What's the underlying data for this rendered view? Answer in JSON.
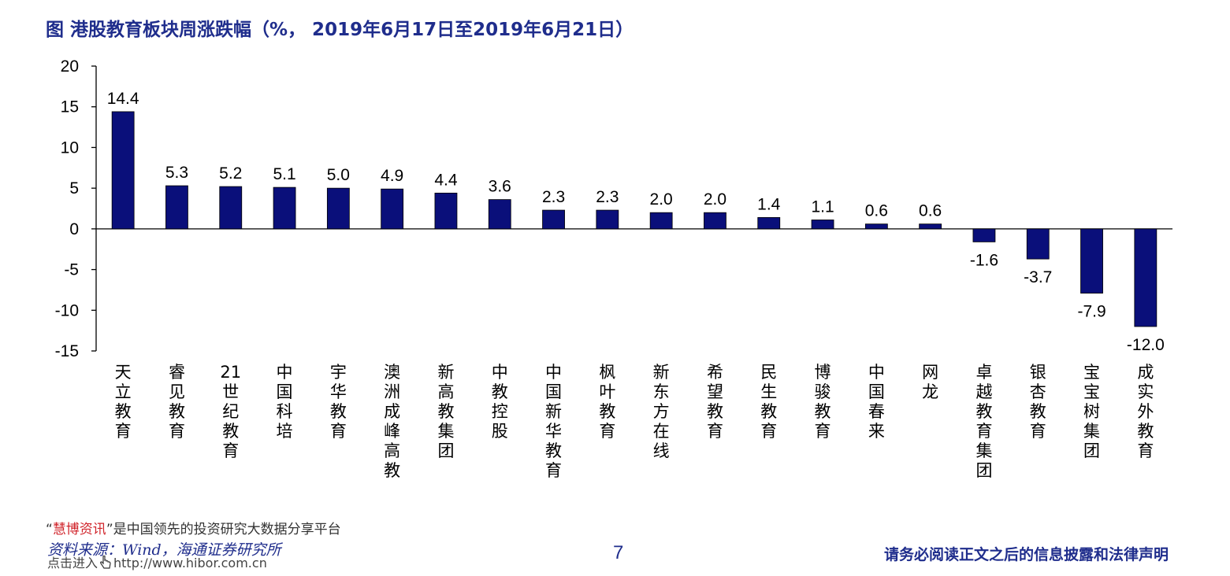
{
  "header": {
    "title": "图  港股教育板块周涨跌幅（%， 2019年6月17日至2019年6月21日）"
  },
  "chart_data": {
    "type": "bar",
    "title": "图  港股教育板块周涨跌幅（%， 2019年6月17日至2019年6月21日）",
    "categories": [
      "天立教育",
      "睿见教育",
      "21世纪教育",
      "中国科培",
      "宇华教育",
      "澳洲成峰高教",
      "新高教集团",
      "中教控股",
      "中国新华教育",
      "枫叶教育",
      "新东方在线",
      "希望教育",
      "民生教育",
      "博骏教育",
      "中国春来",
      "网龙",
      "卓越教育集团",
      "银杏教育",
      "宝宝树集团",
      "成实外教育"
    ],
    "values": [
      14.4,
      5.3,
      5.2,
      5.1,
      5.0,
      4.9,
      4.4,
      3.6,
      2.3,
      2.3,
      2.0,
      2.0,
      1.4,
      1.1,
      0.6,
      0.6,
      -1.6,
      -3.7,
      -7.9,
      -12.0
    ],
    "value_labels": [
      "14.4",
      "5.3",
      "5.2",
      "5.1",
      "5.0",
      "4.9",
      "4.4",
      "3.6",
      "2.3",
      "2.3",
      "2.0",
      "2.0",
      "1.4",
      "1.1",
      "0.6",
      "0.6",
      "-1.6",
      "-3.7",
      "-7.9",
      "-12.0"
    ],
    "ylim": [
      -15,
      20
    ],
    "yticks": [
      20,
      15,
      10,
      5,
      0,
      -5,
      -10,
      -15
    ],
    "bar_color": "#0a0f7a",
    "grid": false,
    "xlabel": "",
    "ylabel": ""
  },
  "footer": {
    "watermark_quote_open": "“",
    "watermark_brand": "慧博资讯",
    "watermark_quote_close": "”",
    "watermark_text": "是中国领先的投资研究大数据分享平台",
    "source": "资料来源：Wind，海通证券研究所",
    "watermark_link_prefix": "点击进入",
    "watermark_link": "http://www.hibor.com.cn",
    "page_number": "7",
    "disclaimer": "请务必阅读正文之后的信息披露和法律声明"
  }
}
